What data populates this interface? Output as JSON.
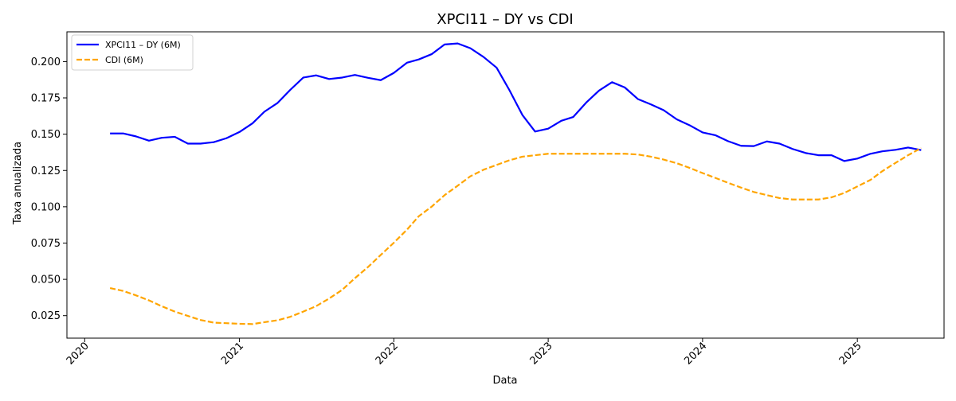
{
  "chart_data": {
    "type": "line",
    "title": "XPCI11 – DY vs CDI",
    "xlabel": "Data",
    "ylabel": "Taxa anualizada",
    "xlim": [
      "2019-11-20",
      "2025-07-25"
    ],
    "ylim": [
      0.0095,
      0.2205
    ],
    "x_ticks": [
      "2020",
      "2021",
      "2022",
      "2023",
      "2024",
      "2025"
    ],
    "y_ticks": [
      "0.025",
      "0.050",
      "0.075",
      "0.100",
      "0.125",
      "0.150",
      "0.175",
      "0.200"
    ],
    "grid": false,
    "legend_position": "top-left",
    "series": [
      {
        "name": "XPCI11 – DY (6M)",
        "color": "#0000ff",
        "style": "solid",
        "points": [
          [
            "2020-03-01",
            0.1505
          ],
          [
            "2020-04-01",
            0.1505
          ],
          [
            "2020-05-01",
            0.1485
          ],
          [
            "2020-06-01",
            0.1455
          ],
          [
            "2020-07-01",
            0.1475
          ],
          [
            "2020-08-01",
            0.1482
          ],
          [
            "2020-09-01",
            0.1435
          ],
          [
            "2020-10-01",
            0.1435
          ],
          [
            "2020-11-01",
            0.1445
          ],
          [
            "2020-12-01",
            0.1472
          ],
          [
            "2021-01-01",
            0.1515
          ],
          [
            "2021-02-01",
            0.1575
          ],
          [
            "2021-03-01",
            0.1655
          ],
          [
            "2021-04-01",
            0.1715
          ],
          [
            "2021-05-01",
            0.1805
          ],
          [
            "2021-06-01",
            0.189
          ],
          [
            "2021-07-01",
            0.1905
          ],
          [
            "2021-08-01",
            0.188
          ],
          [
            "2021-09-01",
            0.189
          ],
          [
            "2021-10-01",
            0.1908
          ],
          [
            "2021-11-01",
            0.1888
          ],
          [
            "2021-12-01",
            0.1872
          ],
          [
            "2022-01-01",
            0.1922
          ],
          [
            "2022-02-01",
            0.1992
          ],
          [
            "2022-03-01",
            0.2015
          ],
          [
            "2022-04-01",
            0.2052
          ],
          [
            "2022-05-01",
            0.2118
          ],
          [
            "2022-06-01",
            0.2125
          ],
          [
            "2022-07-01",
            0.2092
          ],
          [
            "2022-08-01",
            0.2032
          ],
          [
            "2022-09-01",
            0.1958
          ],
          [
            "2022-10-01",
            0.1805
          ],
          [
            "2022-11-01",
            0.1632
          ],
          [
            "2022-12-01",
            0.1518
          ],
          [
            "2023-01-01",
            0.1538
          ],
          [
            "2023-02-01",
            0.1592
          ],
          [
            "2023-03-01",
            0.1618
          ],
          [
            "2023-04-01",
            0.1718
          ],
          [
            "2023-05-01",
            0.18
          ],
          [
            "2023-06-01",
            0.1858
          ],
          [
            "2023-07-01",
            0.1822
          ],
          [
            "2023-08-01",
            0.1742
          ],
          [
            "2023-09-01",
            0.1705
          ],
          [
            "2023-10-01",
            0.1665
          ],
          [
            "2023-11-01",
            0.1602
          ],
          [
            "2023-12-01",
            0.1562
          ],
          [
            "2024-01-01",
            0.1512
          ],
          [
            "2024-02-01",
            0.1492
          ],
          [
            "2024-03-01",
            0.1452
          ],
          [
            "2024-04-01",
            0.142
          ],
          [
            "2024-05-01",
            0.1418
          ],
          [
            "2024-06-01",
            0.145
          ],
          [
            "2024-07-01",
            0.1435
          ],
          [
            "2024-08-01",
            0.1398
          ],
          [
            "2024-09-01",
            0.137
          ],
          [
            "2024-10-01",
            0.1355
          ],
          [
            "2024-11-01",
            0.1355
          ],
          [
            "2024-12-01",
            0.1315
          ],
          [
            "2025-01-01",
            0.1332
          ],
          [
            "2025-02-01",
            0.1365
          ],
          [
            "2025-03-01",
            0.1382
          ],
          [
            "2025-04-01",
            0.1392
          ],
          [
            "2025-05-01",
            0.1408
          ],
          [
            "2025-06-01",
            0.139
          ]
        ]
      },
      {
        "name": "CDI (6M)",
        "color": "#ffa500",
        "style": "dashed",
        "points": [
          [
            "2020-03-01",
            0.044
          ],
          [
            "2020-04-01",
            0.042
          ],
          [
            "2020-05-01",
            0.039
          ],
          [
            "2020-06-01",
            0.0355
          ],
          [
            "2020-07-01",
            0.0315
          ],
          [
            "2020-08-01",
            0.0278
          ],
          [
            "2020-09-01",
            0.0248
          ],
          [
            "2020-10-01",
            0.022
          ],
          [
            "2020-11-01",
            0.0202
          ],
          [
            "2020-12-01",
            0.0198
          ],
          [
            "2021-01-01",
            0.0194
          ],
          [
            "2021-02-01",
            0.0192
          ],
          [
            "2021-03-01",
            0.0205
          ],
          [
            "2021-04-01",
            0.0218
          ],
          [
            "2021-05-01",
            0.0242
          ],
          [
            "2021-06-01",
            0.0278
          ],
          [
            "2021-07-01",
            0.0315
          ],
          [
            "2021-08-01",
            0.0368
          ],
          [
            "2021-09-01",
            0.0428
          ],
          [
            "2021-10-01",
            0.0508
          ],
          [
            "2021-11-01",
            0.0585
          ],
          [
            "2021-12-01",
            0.0668
          ],
          [
            "2022-01-01",
            0.0752
          ],
          [
            "2022-02-01",
            0.0842
          ],
          [
            "2022-03-01",
            0.0935
          ],
          [
            "2022-04-01",
            0.1002
          ],
          [
            "2022-05-01",
            0.108
          ],
          [
            "2022-06-01",
            0.1145
          ],
          [
            "2022-07-01",
            0.121
          ],
          [
            "2022-08-01",
            0.1255
          ],
          [
            "2022-09-01",
            0.1288
          ],
          [
            "2022-10-01",
            0.132
          ],
          [
            "2022-11-01",
            0.1345
          ],
          [
            "2022-12-01",
            0.1355
          ],
          [
            "2023-01-01",
            0.1365
          ],
          [
            "2023-02-01",
            0.1365
          ],
          [
            "2023-03-01",
            0.1365
          ],
          [
            "2023-04-01",
            0.1365
          ],
          [
            "2023-05-01",
            0.1365
          ],
          [
            "2023-06-01",
            0.1365
          ],
          [
            "2023-07-01",
            0.1365
          ],
          [
            "2023-08-01",
            0.136
          ],
          [
            "2023-09-01",
            0.1345
          ],
          [
            "2023-10-01",
            0.1325
          ],
          [
            "2023-11-01",
            0.13
          ],
          [
            "2023-12-01",
            0.1268
          ],
          [
            "2024-01-01",
            0.1232
          ],
          [
            "2024-02-01",
            0.1198
          ],
          [
            "2024-03-01",
            0.1165
          ],
          [
            "2024-04-01",
            0.1132
          ],
          [
            "2024-05-01",
            0.1102
          ],
          [
            "2024-06-01",
            0.108
          ],
          [
            "2024-07-01",
            0.106
          ],
          [
            "2024-08-01",
            0.105
          ],
          [
            "2024-09-01",
            0.105
          ],
          [
            "2024-10-01",
            0.105
          ],
          [
            "2024-11-01",
            0.1065
          ],
          [
            "2024-12-01",
            0.1095
          ],
          [
            "2025-01-01",
            0.114
          ],
          [
            "2025-02-01",
            0.1185
          ],
          [
            "2025-03-01",
            0.1245
          ],
          [
            "2025-04-01",
            0.1302
          ],
          [
            "2025-05-01",
            0.1355
          ],
          [
            "2025-06-01",
            0.1405
          ]
        ]
      }
    ]
  }
}
